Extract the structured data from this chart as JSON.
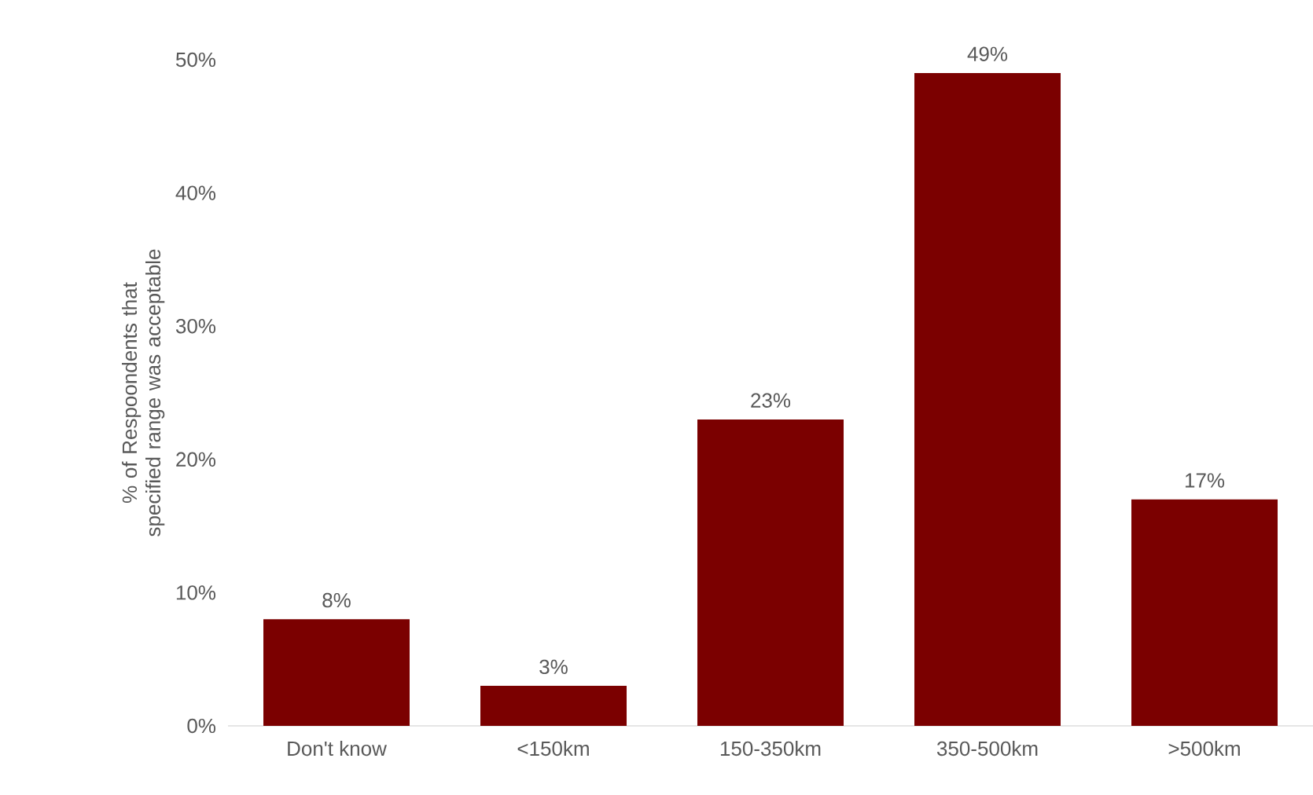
{
  "chart_data": {
    "type": "bar",
    "ylabel": "% of Respoondents that specified range was acceptable",
    "categories": [
      "Don't know",
      "<150km",
      "150-350km",
      "350-500km",
      ">500km"
    ],
    "values": [
      8,
      3,
      23,
      49,
      17
    ],
    "value_labels": [
      "8%",
      "3%",
      "23%",
      "49%",
      "17%"
    ],
    "color": "#7b0000",
    "ylim": [
      0,
      50
    ],
    "yticks": [
      {
        "value": 0,
        "label": "0%"
      },
      {
        "value": 10,
        "label": "10%"
      },
      {
        "value": 20,
        "label": "20%"
      },
      {
        "value": 30,
        "label": "30%"
      },
      {
        "value": 40,
        "label": "40%"
      },
      {
        "value": 50,
        "label": "50%"
      }
    ]
  }
}
